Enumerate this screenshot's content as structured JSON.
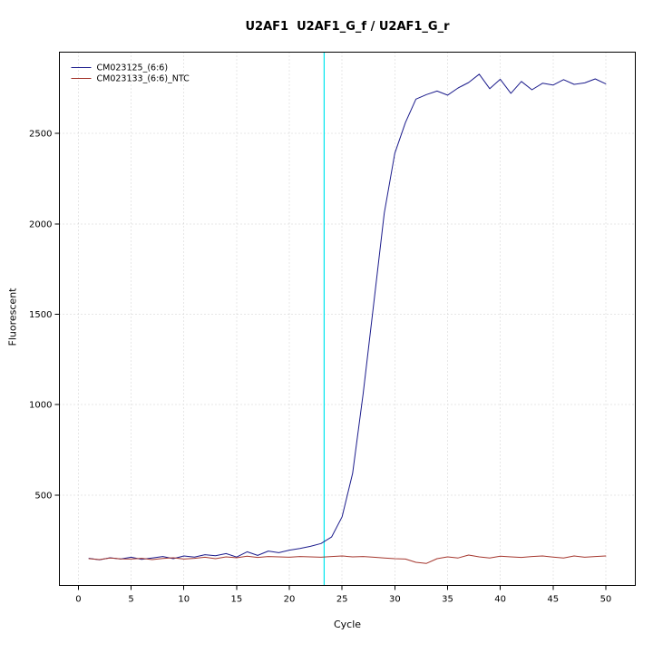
{
  "chart_data": {
    "type": "line",
    "title": "U2AF1  U2AF1_G_f / U2AF1_G_r",
    "xlabel": "Cycle",
    "ylabel": "Fluorescent",
    "xlim": [
      -1.8,
      52.8
    ],
    "ylim": [
      0,
      2950
    ],
    "x_ticks": [
      0,
      5,
      10,
      15,
      20,
      25,
      30,
      35,
      40,
      45,
      50
    ],
    "y_ticks": [
      500,
      1000,
      1500,
      2000,
      2500
    ],
    "grid": true,
    "grid_color": "#cfcfcf",
    "threshold_cycle": 23.3,
    "threshold_color": "#00e5ee",
    "legend_position": "top-left",
    "series": [
      {
        "name": "CM023125_(6:6)",
        "color": "#1c1c8c",
        "x": [
          1,
          2,
          3,
          4,
          5,
          6,
          7,
          8,
          9,
          10,
          11,
          12,
          13,
          14,
          15,
          16,
          17,
          18,
          19,
          20,
          21,
          22,
          23,
          24,
          25,
          26,
          27,
          28,
          29,
          30,
          31,
          32,
          33,
          34,
          35,
          36,
          37,
          38,
          39,
          40,
          41,
          42,
          43,
          44,
          45,
          46,
          47,
          48,
          49,
          50
        ],
        "y": [
          150,
          142,
          153,
          146,
          156,
          144,
          152,
          160,
          148,
          163,
          157,
          170,
          164,
          176,
          157,
          186,
          166,
          190,
          181,
          195,
          204,
          216,
          232,
          268,
          380,
          620,
          1060,
          1560,
          2060,
          2390,
          2560,
          2690,
          2715,
          2735,
          2712,
          2752,
          2782,
          2828,
          2748,
          2800,
          2722,
          2788,
          2742,
          2778,
          2768,
          2798,
          2772,
          2780,
          2802,
          2775
        ]
      },
      {
        "name": "CM023133_(6:6)_NTC",
        "color": "#a5372e",
        "x": [
          1,
          2,
          3,
          4,
          5,
          6,
          7,
          8,
          9,
          10,
          11,
          12,
          13,
          14,
          15,
          16,
          17,
          18,
          19,
          20,
          21,
          22,
          23,
          24,
          25,
          26,
          27,
          28,
          29,
          30,
          31,
          32,
          33,
          34,
          35,
          36,
          37,
          38,
          39,
          40,
          41,
          42,
          43,
          44,
          45,
          46,
          47,
          48,
          49,
          50
        ],
        "y": [
          148,
          143,
          152,
          147,
          146,
          150,
          143,
          149,
          153,
          146,
          150,
          156,
          148,
          158,
          153,
          162,
          155,
          160,
          158,
          156,
          160,
          158,
          156,
          160,
          163,
          158,
          160,
          156,
          152,
          148,
          146,
          128,
          122,
          148,
          158,
          152,
          168,
          158,
          152,
          162,
          158,
          155,
          160,
          163,
          157,
          152,
          163,
          156,
          160,
          163
        ]
      }
    ]
  }
}
